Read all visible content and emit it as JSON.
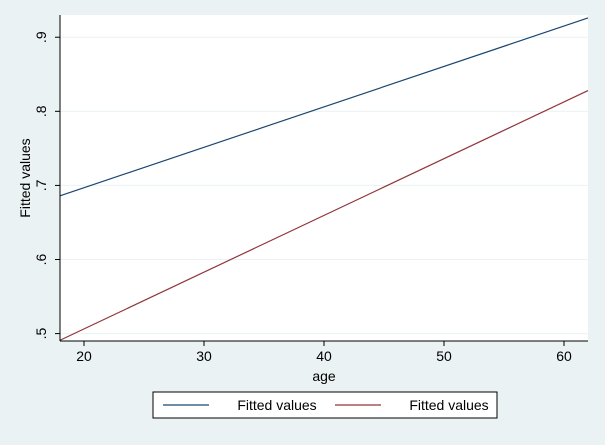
{
  "chart_data": {
    "type": "line",
    "title": "",
    "xlabel": "age",
    "ylabel": "Fitted values",
    "xlim": [
      18,
      62
    ],
    "ylim": [
      0.49,
      0.93
    ],
    "xticks": [
      20,
      30,
      40,
      50,
      60
    ],
    "xtick_labels": [
      "20",
      "30",
      "40",
      "50",
      "60"
    ],
    "yticks": [
      0.5,
      0.6,
      0.7,
      0.8,
      0.9
    ],
    "ytick_labels": [
      ".5",
      ".6",
      ".7",
      ".8",
      ".9"
    ],
    "grid": true,
    "legend_position": "bottom",
    "series": [
      {
        "name": "Fitted values",
        "color": "#1a476f",
        "x": [
          18,
          62
        ],
        "y": [
          0.686,
          0.926
        ]
      },
      {
        "name": "Fitted values",
        "color": "#90353b",
        "x": [
          18,
          62
        ],
        "y": [
          0.491,
          0.828
        ]
      }
    ]
  }
}
